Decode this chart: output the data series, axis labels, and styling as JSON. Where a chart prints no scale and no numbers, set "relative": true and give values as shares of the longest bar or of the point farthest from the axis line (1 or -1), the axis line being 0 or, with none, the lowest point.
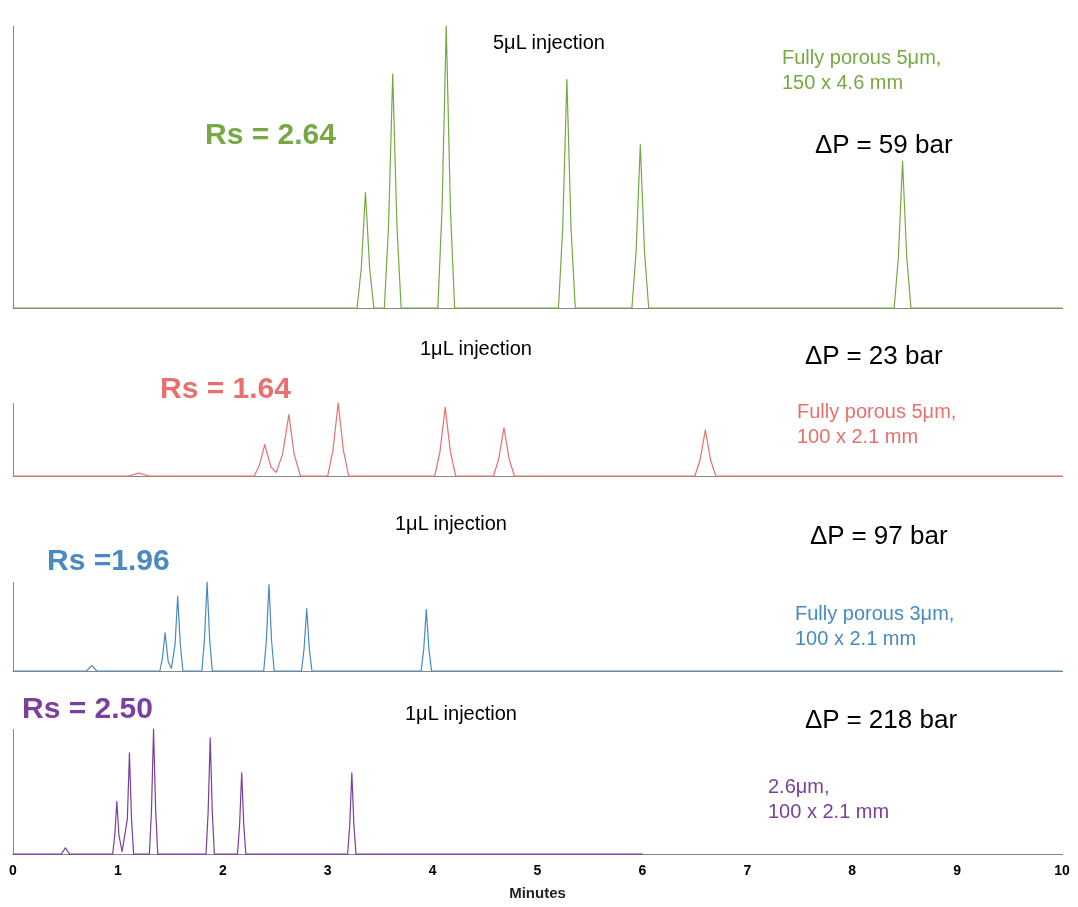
{
  "chart_data": [
    {
      "type": "line",
      "relative": true,
      "xlim": [
        0,
        10
      ],
      "tick_labels": false,
      "marker": "none",
      "annotations": [
        "Rs = 2.64",
        "5μL injection",
        "Fully porous 5μm,\n150 x 4.6 mm",
        "ΔP = 59 bar"
      ],
      "series": [
        {
          "color": "#77a844",
          "x": [
            0,
            3.28,
            3.32,
            3.36,
            3.4,
            3.44,
            3.54,
            3.58,
            3.62,
            3.66,
            3.7,
            4.05,
            4.09,
            4.13,
            4.17,
            4.21,
            5.2,
            5.24,
            5.28,
            5.32,
            5.36,
            5.9,
            5.94,
            5.98,
            6.02,
            6.06,
            8.4,
            8.44,
            8.48,
            8.52,
            8.56,
            10
          ],
          "values": [
            0,
            0,
            0.14,
            0.41,
            0.14,
            0,
            0,
            0.29,
            0.83,
            0.29,
            0,
            0,
            0.35,
            1,
            0.35,
            0,
            0,
            0.28,
            0.81,
            0.28,
            0,
            0,
            0.2,
            0.58,
            0.2,
            0,
            0,
            0.18,
            0.52,
            0.18,
            0,
            0
          ]
        }
      ]
    },
    {
      "type": "line",
      "relative": true,
      "xlim": [
        0,
        10
      ],
      "tick_labels": false,
      "marker": "none",
      "annotations": [
        "Rs = 1.64",
        "1μL injection",
        "Fully porous 5μm,\n100 x 2.1 mm",
        "ΔP = 23 bar"
      ],
      "series": [
        {
          "color": "#e8706f",
          "x": [
            0,
            1.1,
            1.2,
            1.3,
            2.3,
            2.35,
            2.4,
            2.46,
            2.51,
            2.57,
            2.63,
            2.68,
            2.74,
            3.0,
            3.05,
            3.1,
            3.15,
            3.2,
            4.02,
            4.07,
            4.12,
            4.17,
            4.22,
            4.58,
            4.63,
            4.68,
            4.73,
            4.78,
            6.5,
            6.55,
            6.6,
            6.65,
            6.7,
            10
          ],
          "values": [
            0,
            0,
            0.04,
            0,
            0,
            0.15,
            0.43,
            0.12,
            0.05,
            0.3,
            0.84,
            0.3,
            0,
            0,
            0.35,
            1,
            0.35,
            0,
            0,
            0.33,
            0.94,
            0.33,
            0,
            0,
            0.23,
            0.66,
            0.23,
            0,
            0,
            0.22,
            0.63,
            0.22,
            0,
            0
          ]
        }
      ]
    },
    {
      "type": "line",
      "relative": true,
      "xlim": [
        0,
        10
      ],
      "tick_labels": false,
      "marker": "none",
      "annotations": [
        "Rs =1.96",
        "1μL injection",
        "Fully porous 3μm,\n100 x 2.1 mm",
        "ΔP = 97 bar"
      ],
      "series": [
        {
          "color": "#4a8ac0",
          "x": [
            0,
            0.7,
            0.75,
            0.8,
            1.4,
            1.425,
            1.45,
            1.48,
            1.51,
            1.545,
            1.57,
            1.595,
            1.62,
            1.8,
            1.825,
            1.85,
            1.875,
            1.9,
            2.39,
            2.415,
            2.44,
            2.465,
            2.49,
            2.75,
            2.775,
            2.8,
            2.825,
            2.85,
            3.89,
            3.915,
            3.94,
            3.965,
            3.99,
            10
          ],
          "values": [
            0,
            0,
            0.06,
            0,
            0,
            0.15,
            0.43,
            0.1,
            0.03,
            0.3,
            0.84,
            0.3,
            0,
            0,
            0.35,
            1,
            0.35,
            0,
            0,
            0.34,
            0.97,
            0.34,
            0,
            0,
            0.25,
            0.7,
            0.25,
            0,
            0,
            0.24,
            0.69,
            0.24,
            0,
            0
          ]
        }
      ]
    },
    {
      "type": "line",
      "relative": true,
      "xlim": [
        0,
        10
      ],
      "xticks": [
        0,
        1,
        2,
        3,
        4,
        5,
        6,
        7,
        8,
        9,
        10
      ],
      "tick_labels": "x",
      "marker": "none",
      "xlabel": "Minutes",
      "annotations": [
        "Rs = 2.50",
        "1μL injection",
        "2.6μm,\n100 x 2.1 mm",
        "ΔP = 218 bar"
      ],
      "series": [
        {
          "color": "#7b3f9e",
          "x": [
            0,
            0.46,
            0.5,
            0.54,
            0.95,
            0.97,
            0.99,
            1.01,
            1.04,
            1.09,
            1.11,
            1.13,
            1.15,
            1.3,
            1.32,
            1.34,
            1.36,
            1.38,
            1.84,
            1.86,
            1.88,
            1.9,
            1.92,
            2.14,
            2.16,
            2.18,
            2.2,
            2.22,
            3.19,
            3.21,
            3.23,
            3.25,
            3.27,
            6
          ],
          "values": [
            0,
            0,
            0.05,
            0,
            0,
            0.15,
            0.42,
            0.15,
            0.02,
            0.28,
            0.81,
            0.28,
            0,
            0,
            0.35,
            1,
            0.35,
            0,
            0,
            0.33,
            0.93,
            0.33,
            0,
            0,
            0.23,
            0.65,
            0.23,
            0,
            0,
            0.23,
            0.65,
            0.23,
            0,
            0
          ]
        }
      ]
    }
  ]
}
